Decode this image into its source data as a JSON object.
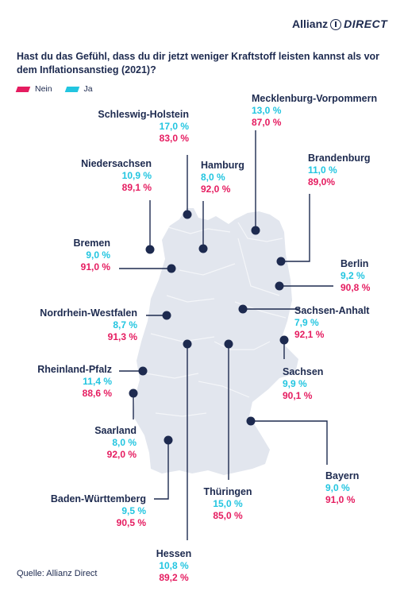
{
  "brand": {
    "name": "Allianz",
    "suffix": "DIRECT"
  },
  "legend": {
    "nein": "Nein",
    "ja": "Ja"
  },
  "source": "Quelle: Allianz Direct",
  "colors": {
    "nein": "#e51c60",
    "ja": "#22c5e0",
    "text": "#1d2a4f",
    "map": "#e2e6ee"
  },
  "chart_data": {
    "type": "map",
    "title": "Hast du das Gefühl, dass du dir jetzt weniger Kraftstoff leisten kannst als vor dem Inflationsanstieg (2021)?",
    "series": [
      {
        "name": "Nein"
      },
      {
        "name": "Ja"
      }
    ],
    "regions": [
      {
        "name": "Schleswig-Holstein",
        "ja": 17.0,
        "nein": 83.0,
        "ja_label": "17,0 %",
        "nein_label": "83,0 %"
      },
      {
        "name": "Mecklenburg-Vorpommern",
        "ja": 13.0,
        "nein": 87.0,
        "ja_label": "13,0 %",
        "nein_label": "87,0 %"
      },
      {
        "name": "Niedersachsen",
        "ja": 10.9,
        "nein": 89.1,
        "ja_label": "10,9 %",
        "nein_label": "89,1 %"
      },
      {
        "name": "Hamburg",
        "ja": 8.0,
        "nein": 92.0,
        "ja_label": "8,0 %",
        "nein_label": "92,0 %"
      },
      {
        "name": "Brandenburg",
        "ja": 11.0,
        "nein": 89.0,
        "ja_label": "11,0 %",
        "nein_label": "89,0%"
      },
      {
        "name": "Bremen",
        "ja": 9.0,
        "nein": 91.0,
        "ja_label": "9,0 %",
        "nein_label": "91,0 %"
      },
      {
        "name": "Berlin",
        "ja": 9.2,
        "nein": 90.8,
        "ja_label": "9,2 %",
        "nein_label": "90,8 %"
      },
      {
        "name": "Nordrhein-Westfalen",
        "ja": 8.7,
        "nein": 91.3,
        "ja_label": "8,7 %",
        "nein_label": "91,3 %"
      },
      {
        "name": "Sachsen-Anhalt",
        "ja": 7.9,
        "nein": 92.1,
        "ja_label": "7,9 %",
        "nein_label": "92,1 %"
      },
      {
        "name": "Rheinland-Pfalz",
        "ja": 11.4,
        "nein": 88.6,
        "ja_label": "11,4 %",
        "nein_label": "88,6 %"
      },
      {
        "name": "Sachsen",
        "ja": 9.9,
        "nein": 90.1,
        "ja_label": "9,9 %",
        "nein_label": "90,1 %"
      },
      {
        "name": "Saarland",
        "ja": 8.0,
        "nein": 92.0,
        "ja_label": "8,0 %",
        "nein_label": "92,0 %"
      },
      {
        "name": "Bayern",
        "ja": 9.0,
        "nein": 91.0,
        "ja_label": "9,0 %",
        "nein_label": "91,0 %"
      },
      {
        "name": "Baden-Württemberg",
        "ja": 9.5,
        "nein": 90.5,
        "ja_label": "9,5 %",
        "nein_label": "90,5 %"
      },
      {
        "name": "Thüringen",
        "ja": 15.0,
        "nein": 85.0,
        "ja_label": "15,0 %",
        "nein_label": "85,0 %"
      },
      {
        "name": "Hessen",
        "ja": 10.8,
        "nein": 89.2,
        "ja_label": "10,8 %",
        "nein_label": "89,2 %"
      }
    ]
  }
}
